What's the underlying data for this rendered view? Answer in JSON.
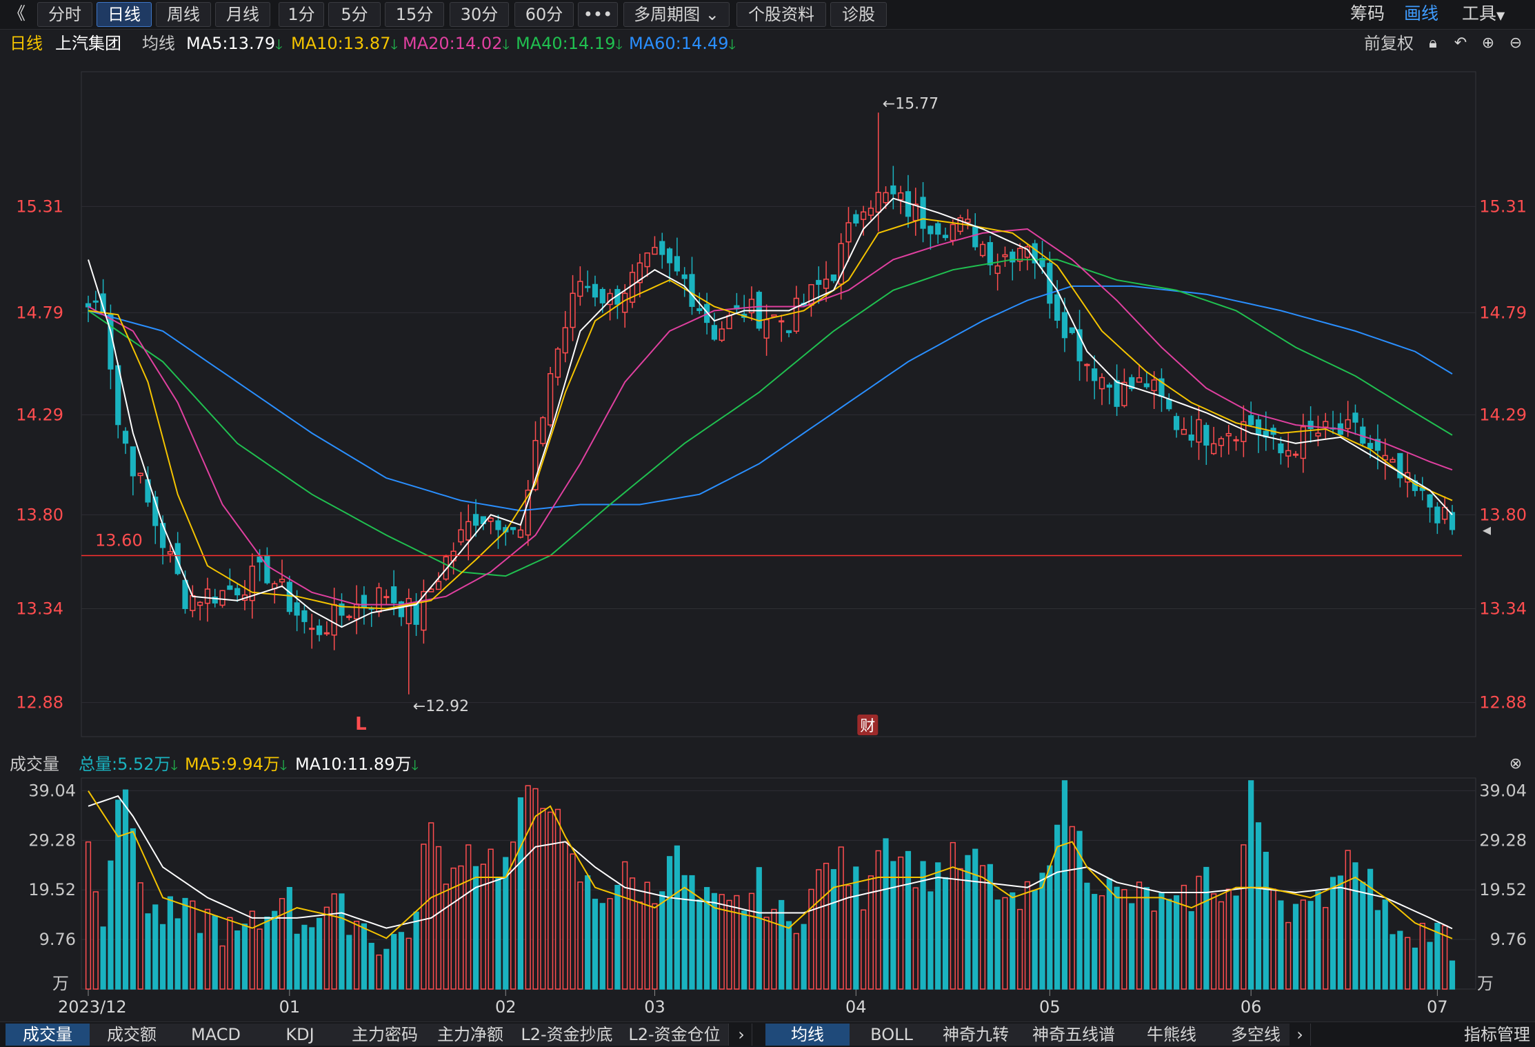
{
  "toolbar": {
    "back_icon": "double-chevron-left-icon",
    "periods": [
      "分时",
      "日线",
      "周线",
      "月线",
      "1分",
      "5分",
      "15分",
      "30分",
      "60分"
    ],
    "active_period": "日线",
    "more_label": "•••",
    "multi_period_label": "多周期图",
    "stock_info_label": "个股资料",
    "diagnosis_label": "诊股",
    "chips_label": "筹码",
    "draw_label": "画线",
    "tools_label": "工具"
  },
  "stock": {
    "period_label": "日线",
    "name": "上汽集团",
    "ma_label": "均线",
    "ma5": "MA5:13.79",
    "ma10": "MA10:13.87",
    "ma20": "MA20:14.02",
    "ma40": "MA40:14.19",
    "ma60": "MA60:14.49",
    "adjust_label": "前复权"
  },
  "volume_header": {
    "title": "成交量",
    "total": "总量:5.52万",
    "ma5": "MA5:9.94万",
    "ma10": "MA10:11.89万"
  },
  "bottom_tabs_left": [
    "成交量",
    "成交额",
    "MACD",
    "KDJ",
    "主力密码",
    "主力净额",
    "L2-资金抄底",
    "L2-资金仓位"
  ],
  "bottom_tabs_right": [
    "均线",
    "BOLL",
    "神奇九转",
    "神奇五线谱",
    "牛熊线",
    "多空线"
  ],
  "indicator_manage_label": "指标管理",
  "colors": {
    "up": "#ff4d4f",
    "down": "#1ab3c0",
    "ma5": "#ffffff",
    "ma10": "#f5c400",
    "ma20": "#e040a0",
    "ma40": "#20c050",
    "ma60": "#2a8fff",
    "axis_text": "#ff4d4f"
  },
  "chart_data": {
    "type": "candlestick",
    "price_axis_ticks": [
      "15.31",
      "14.79",
      "14.29",
      "13.80",
      "13.34",
      "12.88"
    ],
    "price_ylim": [
      12.72,
      15.95
    ],
    "volume_axis_ticks": [
      "39.04",
      "29.28",
      "19.52",
      "9.76",
      "万"
    ],
    "volume_ylim": [
      0,
      41
    ],
    "x_tick_labels": [
      "2023/12",
      "01",
      "02",
      "03",
      "04",
      "05",
      "06",
      "07"
    ],
    "x_tick_index": [
      0,
      27,
      56,
      76,
      103,
      129,
      156,
      181
    ],
    "annotations": {
      "high_label": "←15.77",
      "high_index": 106,
      "low_label": "←12.92",
      "low_index": 43,
      "support_line_label": "13.60",
      "support_value": 13.6,
      "marker_L": "L",
      "marker_L_index": 36,
      "marker_finance": "财",
      "marker_finance_index": 103
    },
    "ohlc_keypoints": [
      [
        0,
        14.82
      ],
      [
        2,
        14.85
      ],
      [
        4,
        14.25
      ],
      [
        8,
        13.85
      ],
      [
        13,
        13.4
      ],
      [
        18,
        13.42
      ],
      [
        24,
        13.52
      ],
      [
        30,
        13.22
      ],
      [
        35,
        13.34
      ],
      [
        40,
        13.42
      ],
      [
        44,
        13.3
      ],
      [
        48,
        13.58
      ],
      [
        52,
        13.8
      ],
      [
        56,
        13.78
      ],
      [
        58,
        13.7
      ],
      [
        62,
        14.5
      ],
      [
        66,
        14.95
      ],
      [
        70,
        14.85
      ],
      [
        76,
        15.05
      ],
      [
        80,
        14.95
      ],
      [
        84,
        14.7
      ],
      [
        88,
        14.8
      ],
      [
        94,
        14.75
      ],
      [
        100,
        15.0
      ],
      [
        104,
        15.35
      ],
      [
        108,
        15.35
      ],
      [
        112,
        15.25
      ],
      [
        118,
        15.2
      ],
      [
        122,
        15.05
      ],
      [
        126,
        15.15
      ],
      [
        130,
        14.8
      ],
      [
        134,
        14.55
      ],
      [
        138,
        14.4
      ],
      [
        142,
        14.45
      ],
      [
        146,
        14.25
      ],
      [
        150,
        14.2
      ],
      [
        156,
        14.25
      ],
      [
        160,
        14.1
      ],
      [
        164,
        14.2
      ],
      [
        170,
        14.2
      ],
      [
        174,
        14.05
      ],
      [
        178,
        13.9
      ],
      [
        181,
        13.82
      ],
      [
        183,
        13.72
      ]
    ],
    "ma5_keypoints": [
      [
        0,
        15.05
      ],
      [
        3,
        14.7
      ],
      [
        6,
        14.2
      ],
      [
        10,
        13.75
      ],
      [
        14,
        13.4
      ],
      [
        20,
        13.38
      ],
      [
        26,
        13.45
      ],
      [
        30,
        13.33
      ],
      [
        34,
        13.25
      ],
      [
        38,
        13.32
      ],
      [
        44,
        13.36
      ],
      [
        50,
        13.62
      ],
      [
        54,
        13.8
      ],
      [
        58,
        13.75
      ],
      [
        62,
        14.2
      ],
      [
        66,
        14.7
      ],
      [
        70,
        14.85
      ],
      [
        76,
        15.0
      ],
      [
        80,
        14.92
      ],
      [
        84,
        14.75
      ],
      [
        88,
        14.8
      ],
      [
        94,
        14.8
      ],
      [
        100,
        14.9
      ],
      [
        104,
        15.2
      ],
      [
        108,
        15.35
      ],
      [
        114,
        15.28
      ],
      [
        120,
        15.2
      ],
      [
        126,
        15.1
      ],
      [
        130,
        14.9
      ],
      [
        134,
        14.6
      ],
      [
        138,
        14.45
      ],
      [
        144,
        14.38
      ],
      [
        150,
        14.3
      ],
      [
        156,
        14.2
      ],
      [
        162,
        14.15
      ],
      [
        168,
        14.18
      ],
      [
        174,
        14.05
      ],
      [
        180,
        13.92
      ],
      [
        183,
        13.8
      ]
    ],
    "ma10_keypoints": [
      [
        0,
        14.8
      ],
      [
        4,
        14.78
      ],
      [
        8,
        14.45
      ],
      [
        12,
        13.9
      ],
      [
        16,
        13.55
      ],
      [
        22,
        13.42
      ],
      [
        28,
        13.4
      ],
      [
        34,
        13.35
      ],
      [
        40,
        13.34
      ],
      [
        46,
        13.38
      ],
      [
        52,
        13.58
      ],
      [
        56,
        13.72
      ],
      [
        60,
        13.95
      ],
      [
        64,
        14.4
      ],
      [
        68,
        14.75
      ],
      [
        72,
        14.85
      ],
      [
        78,
        14.95
      ],
      [
        84,
        14.82
      ],
      [
        90,
        14.75
      ],
      [
        96,
        14.8
      ],
      [
        102,
        14.95
      ],
      [
        106,
        15.18
      ],
      [
        112,
        15.25
      ],
      [
        118,
        15.22
      ],
      [
        124,
        15.18
      ],
      [
        130,
        15.02
      ],
      [
        136,
        14.7
      ],
      [
        142,
        14.5
      ],
      [
        148,
        14.35
      ],
      [
        154,
        14.25
      ],
      [
        160,
        14.2
      ],
      [
        166,
        14.22
      ],
      [
        172,
        14.12
      ],
      [
        178,
        13.95
      ],
      [
        183,
        13.87
      ]
    ],
    "ma20_keypoints": [
      [
        0,
        14.82
      ],
      [
        6,
        14.7
      ],
      [
        12,
        14.35
      ],
      [
        18,
        13.85
      ],
      [
        24,
        13.55
      ],
      [
        30,
        13.42
      ],
      [
        36,
        13.36
      ],
      [
        42,
        13.36
      ],
      [
        48,
        13.4
      ],
      [
        54,
        13.52
      ],
      [
        60,
        13.7
      ],
      [
        66,
        14.05
      ],
      [
        72,
        14.45
      ],
      [
        78,
        14.7
      ],
      [
        84,
        14.8
      ],
      [
        90,
        14.82
      ],
      [
        96,
        14.82
      ],
      [
        102,
        14.9
      ],
      [
        108,
        15.05
      ],
      [
        114,
        15.12
      ],
      [
        120,
        15.18
      ],
      [
        126,
        15.2
      ],
      [
        132,
        15.05
      ],
      [
        138,
        14.85
      ],
      [
        144,
        14.62
      ],
      [
        150,
        14.42
      ],
      [
        156,
        14.3
      ],
      [
        162,
        14.24
      ],
      [
        168,
        14.22
      ],
      [
        174,
        14.15
      ],
      [
        180,
        14.06
      ],
      [
        183,
        14.02
      ]
    ],
    "ma40_keypoints": [
      [
        0,
        14.8
      ],
      [
        10,
        14.55
      ],
      [
        20,
        14.15
      ],
      [
        30,
        13.9
      ],
      [
        40,
        13.7
      ],
      [
        50,
        13.52
      ],
      [
        56,
        13.5
      ],
      [
        62,
        13.6
      ],
      [
        70,
        13.85
      ],
      [
        80,
        14.15
      ],
      [
        90,
        14.4
      ],
      [
        100,
        14.7
      ],
      [
        108,
        14.9
      ],
      [
        116,
        15.0
      ],
      [
        124,
        15.05
      ],
      [
        130,
        15.05
      ],
      [
        138,
        14.95
      ],
      [
        146,
        14.9
      ],
      [
        154,
        14.8
      ],
      [
        162,
        14.62
      ],
      [
        170,
        14.48
      ],
      [
        178,
        14.3
      ],
      [
        183,
        14.19
      ]
    ],
    "ma60_keypoints": [
      [
        0,
        14.8
      ],
      [
        10,
        14.7
      ],
      [
        20,
        14.45
      ],
      [
        30,
        14.2
      ],
      [
        40,
        13.98
      ],
      [
        50,
        13.87
      ],
      [
        58,
        13.82
      ],
      [
        66,
        13.85
      ],
      [
        74,
        13.85
      ],
      [
        82,
        13.9
      ],
      [
        90,
        14.05
      ],
      [
        100,
        14.3
      ],
      [
        110,
        14.55
      ],
      [
        120,
        14.75
      ],
      [
        126,
        14.85
      ],
      [
        132,
        14.92
      ],
      [
        140,
        14.92
      ],
      [
        150,
        14.88
      ],
      [
        160,
        14.8
      ],
      [
        170,
        14.7
      ],
      [
        178,
        14.6
      ],
      [
        183,
        14.49
      ]
    ],
    "volume_keypoints": [
      [
        0,
        28
      ],
      [
        2,
        16
      ],
      [
        4,
        39
      ],
      [
        6,
        32
      ],
      [
        8,
        15
      ],
      [
        12,
        14
      ],
      [
        16,
        14
      ],
      [
        20,
        10
      ],
      [
        24,
        14
      ],
      [
        26,
        21
      ],
      [
        28,
        13
      ],
      [
        32,
        16
      ],
      [
        36,
        14
      ],
      [
        40,
        8
      ],
      [
        44,
        14
      ],
      [
        46,
        36
      ],
      [
        48,
        18
      ],
      [
        50,
        28
      ],
      [
        54,
        26
      ],
      [
        56,
        24
      ],
      [
        58,
        34
      ],
      [
        60,
        40
      ],
      [
        62,
        38
      ],
      [
        64,
        26
      ],
      [
        68,
        18
      ],
      [
        72,
        22
      ],
      [
        76,
        18
      ],
      [
        78,
        28
      ],
      [
        82,
        17
      ],
      [
        86,
        15
      ],
      [
        90,
        20
      ],
      [
        94,
        12
      ],
      [
        100,
        26
      ],
      [
        104,
        19
      ],
      [
        106,
        30
      ],
      [
        108,
        29
      ],
      [
        112,
        22
      ],
      [
        116,
        25
      ],
      [
        120,
        24
      ],
      [
        124,
        15
      ],
      [
        128,
        20
      ],
      [
        130,
        36
      ],
      [
        131,
        39
      ],
      [
        134,
        24
      ],
      [
        138,
        18
      ],
      [
        142,
        18
      ],
      [
        146,
        15
      ],
      [
        150,
        22
      ],
      [
        154,
        18
      ],
      [
        156,
        38
      ],
      [
        160,
        18
      ],
      [
        164,
        14
      ],
      [
        168,
        25
      ],
      [
        170,
        28
      ],
      [
        174,
        14
      ],
      [
        178,
        12
      ],
      [
        182,
        10
      ],
      [
        183,
        5.52
      ]
    ],
    "vol_ma5_keypoints": [
      [
        0,
        39
      ],
      [
        4,
        30
      ],
      [
        6,
        31
      ],
      [
        10,
        18
      ],
      [
        16,
        15
      ],
      [
        22,
        12
      ],
      [
        28,
        16
      ],
      [
        34,
        14
      ],
      [
        40,
        10
      ],
      [
        46,
        18
      ],
      [
        52,
        22
      ],
      [
        56,
        22
      ],
      [
        60,
        34
      ],
      [
        62,
        36
      ],
      [
        64,
        30
      ],
      [
        68,
        20
      ],
      [
        72,
        18
      ],
      [
        76,
        16
      ],
      [
        80,
        20
      ],
      [
        84,
        16
      ],
      [
        90,
        14
      ],
      [
        94,
        12
      ],
      [
        100,
        20
      ],
      [
        106,
        22
      ],
      [
        112,
        22
      ],
      [
        116,
        24
      ],
      [
        120,
        22
      ],
      [
        124,
        18
      ],
      [
        128,
        20
      ],
      [
        130,
        28
      ],
      [
        132,
        29
      ],
      [
        134,
        24
      ],
      [
        138,
        18
      ],
      [
        144,
        18
      ],
      [
        148,
        16
      ],
      [
        154,
        20
      ],
      [
        158,
        20
      ],
      [
        164,
        18
      ],
      [
        170,
        22
      ],
      [
        174,
        18
      ],
      [
        178,
        13
      ],
      [
        183,
        9.94
      ]
    ],
    "vol_ma10_keypoints": [
      [
        0,
        36
      ],
      [
        4,
        38
      ],
      [
        6,
        34
      ],
      [
        10,
        24
      ],
      [
        16,
        18
      ],
      [
        22,
        14
      ],
      [
        28,
        14
      ],
      [
        34,
        15
      ],
      [
        40,
        12
      ],
      [
        46,
        14
      ],
      [
        52,
        20
      ],
      [
        56,
        22
      ],
      [
        60,
        28
      ],
      [
        64,
        29
      ],
      [
        68,
        24
      ],
      [
        72,
        20
      ],
      [
        78,
        18
      ],
      [
        84,
        17
      ],
      [
        90,
        15
      ],
      [
        96,
        15
      ],
      [
        102,
        18
      ],
      [
        108,
        20
      ],
      [
        114,
        22
      ],
      [
        120,
        21
      ],
      [
        126,
        20
      ],
      [
        130,
        23
      ],
      [
        134,
        24
      ],
      [
        138,
        21
      ],
      [
        144,
        19
      ],
      [
        150,
        19
      ],
      [
        156,
        20
      ],
      [
        162,
        19
      ],
      [
        168,
        20
      ],
      [
        174,
        18
      ],
      [
        180,
        14
      ],
      [
        183,
        11.89
      ]
    ]
  }
}
